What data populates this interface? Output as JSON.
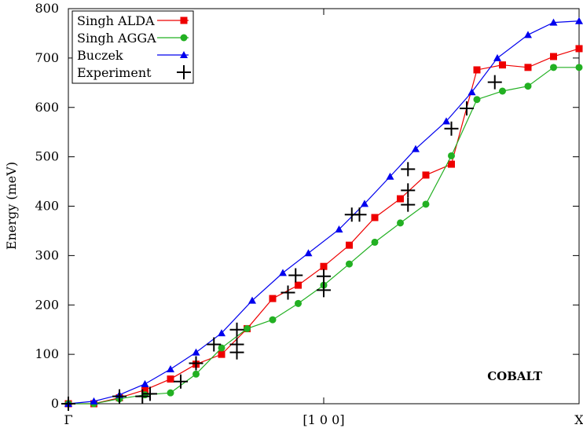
{
  "chart_data": {
    "type": "line",
    "title": "",
    "annotation": "COBALT",
    "xlabel": "[1 0 0]",
    "ylabel": "Energy (meV)",
    "xlim": [
      0,
      1
    ],
    "ylim": [
      0,
      800
    ],
    "yticks": [
      0,
      100,
      200,
      300,
      400,
      500,
      600,
      700,
      800
    ],
    "xtick_labels": [
      {
        "x": 0,
        "label": "Γ"
      },
      {
        "x": 0.5,
        "label": "[1 0 0]"
      },
      {
        "x": 1,
        "label": "X"
      }
    ],
    "series": [
      {
        "name": "Singh ALDA",
        "color": "#ee0000",
        "marker": "square",
        "line": true,
        "points": [
          [
            0,
            0
          ],
          [
            0.05,
            0
          ],
          [
            0.1,
            12
          ],
          [
            0.15,
            28
          ],
          [
            0.2,
            50
          ],
          [
            0.25,
            80
          ],
          [
            0.3,
            100
          ],
          [
            0.35,
            152
          ],
          [
            0.4,
            213
          ],
          [
            0.45,
            240
          ],
          [
            0.5,
            278
          ],
          [
            0.55,
            321
          ],
          [
            0.6,
            377
          ],
          [
            0.65,
            415
          ],
          [
            0.7,
            463
          ],
          [
            0.75,
            485
          ],
          [
            0.8,
            676
          ],
          [
            0.85,
            686
          ],
          [
            0.9,
            681
          ],
          [
            0.95,
            703
          ],
          [
            1.0,
            719
          ]
        ]
      },
      {
        "name": "Singh AGGA",
        "color": "#22b022",
        "marker": "circle",
        "line": true,
        "points": [
          [
            0,
            0
          ],
          [
            0.05,
            0
          ],
          [
            0.1,
            10
          ],
          [
            0.15,
            18
          ],
          [
            0.2,
            22
          ],
          [
            0.25,
            60
          ],
          [
            0.3,
            113
          ],
          [
            0.35,
            152
          ],
          [
            0.4,
            170
          ],
          [
            0.45,
            203
          ],
          [
            0.5,
            240
          ],
          [
            0.55,
            283
          ],
          [
            0.6,
            327
          ],
          [
            0.65,
            366
          ],
          [
            0.7,
            404
          ],
          [
            0.75,
            502
          ],
          [
            0.8,
            616
          ],
          [
            0.85,
            633
          ],
          [
            0.9,
            643
          ],
          [
            0.95,
            681
          ],
          [
            1.0,
            681
          ]
        ]
      },
      {
        "name": "Buczek",
        "color": "#0000ee",
        "marker": "triangle",
        "line": true,
        "points": [
          [
            0,
            0
          ],
          [
            0.05,
            5
          ],
          [
            0.1,
            18
          ],
          [
            0.15,
            40
          ],
          [
            0.2,
            70
          ],
          [
            0.25,
            104
          ],
          [
            0.3,
            143
          ],
          [
            0.36,
            209
          ],
          [
            0.42,
            265
          ],
          [
            0.47,
            305
          ],
          [
            0.53,
            353
          ],
          [
            0.58,
            405
          ],
          [
            0.63,
            460
          ],
          [
            0.68,
            516
          ],
          [
            0.74,
            572
          ],
          [
            0.79,
            631
          ],
          [
            0.84,
            700
          ],
          [
            0.9,
            747
          ],
          [
            0.95,
            772
          ],
          [
            1.0,
            775
          ]
        ]
      },
      {
        "name": "Experiment",
        "color": "#000000",
        "marker": "plus",
        "line": false,
        "points": [
          [
            0,
            0
          ],
          [
            0.1,
            15
          ],
          [
            0.145,
            15
          ],
          [
            0.16,
            20
          ],
          [
            0.22,
            45
          ],
          [
            0.25,
            82
          ],
          [
            0.285,
            120
          ],
          [
            0.33,
            150
          ],
          [
            0.33,
            120
          ],
          [
            0.33,
            104
          ],
          [
            0.43,
            225
          ],
          [
            0.445,
            260
          ],
          [
            0.5,
            230
          ],
          [
            0.5,
            258
          ],
          [
            0.555,
            383
          ],
          [
            0.57,
            383
          ],
          [
            0.665,
            475
          ],
          [
            0.665,
            432
          ],
          [
            0.665,
            403
          ],
          [
            0.75,
            557
          ],
          [
            0.78,
            598
          ],
          [
            0.835,
            651
          ]
        ]
      }
    ]
  }
}
